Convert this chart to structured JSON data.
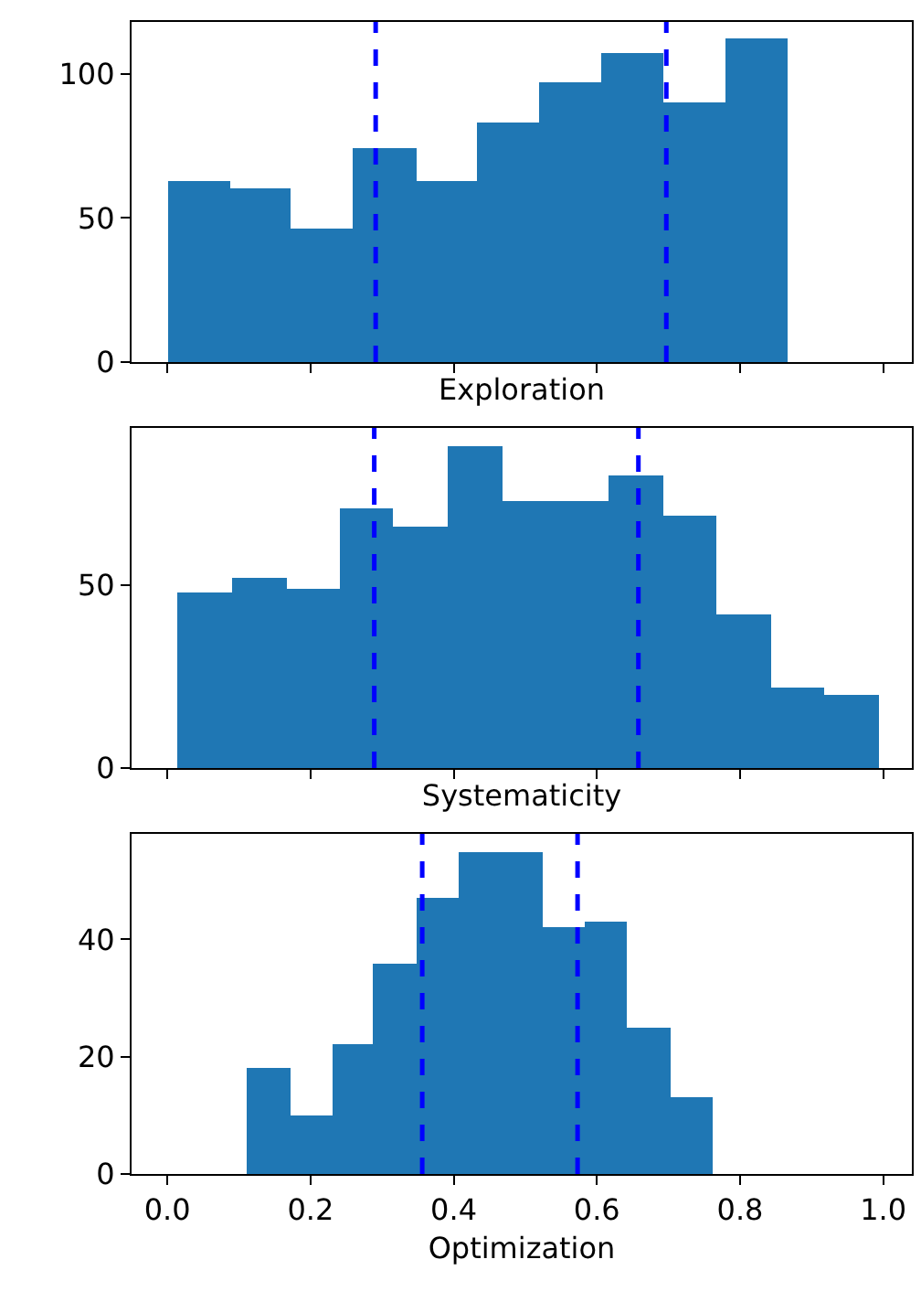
{
  "chart_data": [
    {
      "type": "histogram",
      "xlabel": "Exploration",
      "color": "#1f77b4",
      "bins": [
        0,
        0.087,
        0.173,
        0.26,
        0.347,
        0.433,
        0.52,
        0.607,
        0.693,
        0.78,
        0.867
      ],
      "values": [
        63,
        60,
        46,
        74,
        63,
        83,
        97,
        107,
        90,
        112
      ],
      "xlim": [
        -0.05,
        1.04
      ],
      "xticks": [
        {
          "value": 0,
          "label": null
        },
        {
          "value": 0.2,
          "label": null
        },
        {
          "value": 0.4,
          "label": null
        },
        {
          "value": 0.6,
          "label": null
        },
        {
          "value": 0.8,
          "label": null
        },
        {
          "value": 1,
          "label": null
        }
      ],
      "ylim": [
        0,
        118
      ],
      "yticks": [
        0,
        50,
        100
      ],
      "tick_labels": "y",
      "grid": false,
      "ref_lines": [
        {
          "axis": "x",
          "value": 0.291,
          "color": "#0000ff",
          "line_style": "dashed"
        },
        {
          "axis": "x",
          "value": 0.697,
          "color": "#0000ff",
          "line_style": "dashed"
        }
      ]
    },
    {
      "type": "histogram",
      "xlabel": "Systematicity",
      "color": "#1f77b4",
      "bins": [
        0.014,
        0.09,
        0.166,
        0.24,
        0.316,
        0.392,
        0.468,
        0.542,
        0.617,
        0.692,
        0.768,
        0.844,
        0.918,
        0.994
      ],
      "values": [
        48,
        52,
        49,
        71,
        66,
        88,
        73,
        73,
        80,
        69,
        42,
        22,
        20
      ],
      "xlim": [
        -0.05,
        1.04
      ],
      "xticks": [
        {
          "value": 0,
          "label": null
        },
        {
          "value": 0.2,
          "label": null
        },
        {
          "value": 0.4,
          "label": null
        },
        {
          "value": 0.6,
          "label": null
        },
        {
          "value": 0.8,
          "label": null
        },
        {
          "value": 1,
          "label": null
        }
      ],
      "ylim": [
        0,
        93
      ],
      "yticks": [
        0,
        50
      ],
      "tick_labels": "y",
      "grid": false,
      "ref_lines": [
        {
          "axis": "x",
          "value": 0.289,
          "color": "#0000ff",
          "line_style": "dashed"
        },
        {
          "axis": "x",
          "value": 0.658,
          "color": "#0000ff",
          "line_style": "dashed"
        }
      ]
    },
    {
      "type": "histogram",
      "xlabel": "Optimization",
      "color": "#1f77b4",
      "bins": [
        0.111,
        0.171,
        0.23,
        0.288,
        0.347,
        0.407,
        0.466,
        0.525,
        0.583,
        0.641,
        0.702,
        0.761
      ],
      "values": [
        18,
        10,
        22,
        36,
        47,
        55,
        55,
        42,
        43,
        25,
        13
      ],
      "xlim": [
        -0.05,
        1.04
      ],
      "xticks": [
        {
          "value": 0,
          "label": "0.0"
        },
        {
          "value": 0.2,
          "label": "0.2"
        },
        {
          "value": 0.4,
          "label": "0.4"
        },
        {
          "value": 0.6,
          "label": "0.6"
        },
        {
          "value": 0.8,
          "label": "0.8"
        },
        {
          "value": 1,
          "label": "1.0"
        }
      ],
      "ylim": [
        0,
        58
      ],
      "yticks": [
        0,
        20,
        40
      ],
      "grid": false,
      "ref_lines": [
        {
          "axis": "x",
          "value": 0.356,
          "color": "#0000ff",
          "line_style": "dashed"
        },
        {
          "axis": "x",
          "value": 0.573,
          "color": "#0000ff",
          "line_style": "dashed"
        }
      ]
    }
  ]
}
